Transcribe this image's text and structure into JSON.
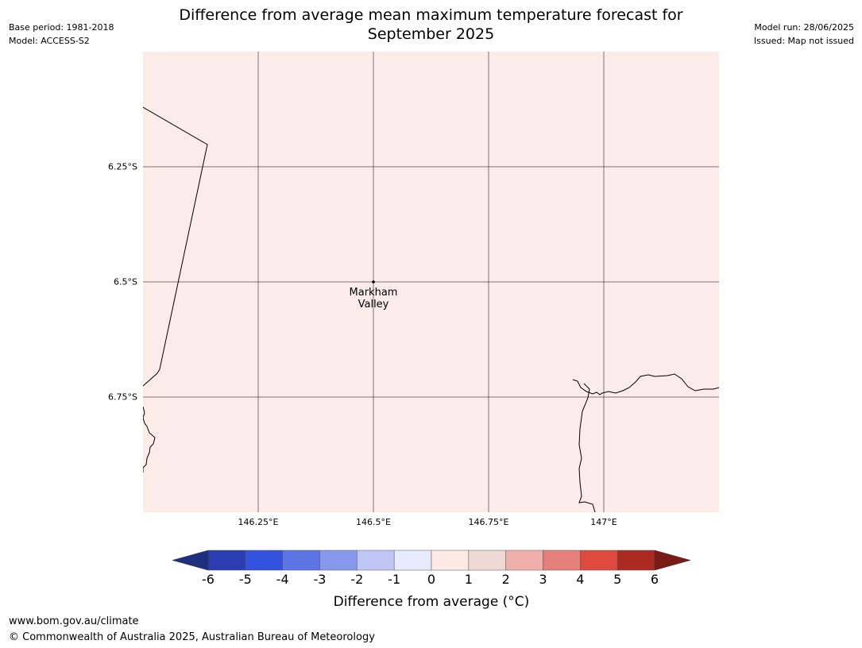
{
  "header": {
    "base_period": "Base period: 1981-2018",
    "model": "Model: ACCESS-S2",
    "model_run": "Model run: 28/06/2025",
    "issued": "Issued: Map not issued",
    "title_line1": "Difference from average mean maximum temperature forecast for",
    "title_line2": "September 2025"
  },
  "map": {
    "background_color": "#fbebe9",
    "lon_range": [
      146.0,
      147.25
    ],
    "lat_range": [
      -6.0,
      -7.0
    ],
    "lat_labels": [
      {
        "value": -6.25,
        "text": "6.25°S"
      },
      {
        "value": -6.5,
        "text": "6.5°S"
      },
      {
        "value": -6.75,
        "text": "6.75°S"
      }
    ],
    "lon_labels": [
      {
        "value": 146.25,
        "text": "146.25°E"
      },
      {
        "value": 146.5,
        "text": "146.5°E"
      },
      {
        "value": 146.75,
        "text": "146.75°E"
      },
      {
        "value": 147.0,
        "text": "147°E"
      }
    ],
    "place": {
      "name": "Markham\nValley",
      "lon": 146.5,
      "lat": -6.5
    }
  },
  "colorbar": {
    "label": "Difference from average (°C)",
    "ticks": [
      "-6",
      "-5",
      "-4",
      "-3",
      "-2",
      "-1",
      "0",
      "1",
      "2",
      "3",
      "4",
      "5",
      "6"
    ],
    "under_color": "#1f2f80",
    "over_color": "#7a1a16",
    "colors": [
      "#2a3eb1",
      "#3352de",
      "#5c74e4",
      "#8797ec",
      "#bfc6f5",
      "#e8ebfc",
      "#fdeae6",
      "#eed8d3",
      "#efafaa",
      "#e6807b",
      "#dd4b3f",
      "#ab2a21"
    ]
  },
  "footer": {
    "url": "www.bom.gov.au/climate",
    "copyright": "© Commonwealth of Australia 2025, Australian Bureau of Meteorology"
  }
}
